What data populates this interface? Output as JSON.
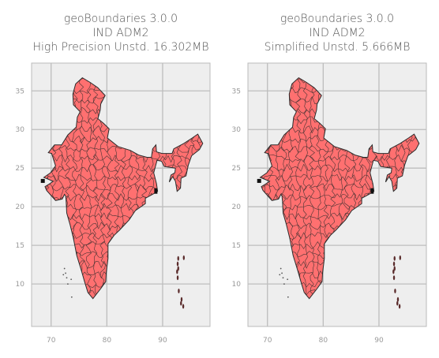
{
  "chart_data": [
    {
      "type": "map",
      "title": [
        "geoBoundaries 3.0.0",
        "IND ADM2",
        "High Precision Unstd. 16.302MB"
      ],
      "xlim": [
        66.5,
        98.5
      ],
      "ylim": [
        4.5,
        38.6
      ],
      "xticks": [
        70,
        80,
        90
      ],
      "yticks": [
        10,
        15,
        20,
        25,
        30,
        35
      ],
      "grid": true,
      "fill_color": "#ff7070",
      "edge_color": "#2b2b2b",
      "background": "#eeeeee"
    },
    {
      "type": "map",
      "title": [
        "geoBoundaries 3.0.0",
        "IND ADM2",
        "Simplified Unstd. 5.666MB"
      ],
      "xlim": [
        66.5,
        98.5
      ],
      "ylim": [
        4.5,
        38.6
      ],
      "xticks": [
        70,
        80,
        90
      ],
      "yticks": [
        10,
        15,
        20,
        25,
        30,
        35
      ],
      "grid": true,
      "fill_color": "#ff7070",
      "edge_color": "#2b2b2b",
      "background": "#eeeeee"
    }
  ]
}
